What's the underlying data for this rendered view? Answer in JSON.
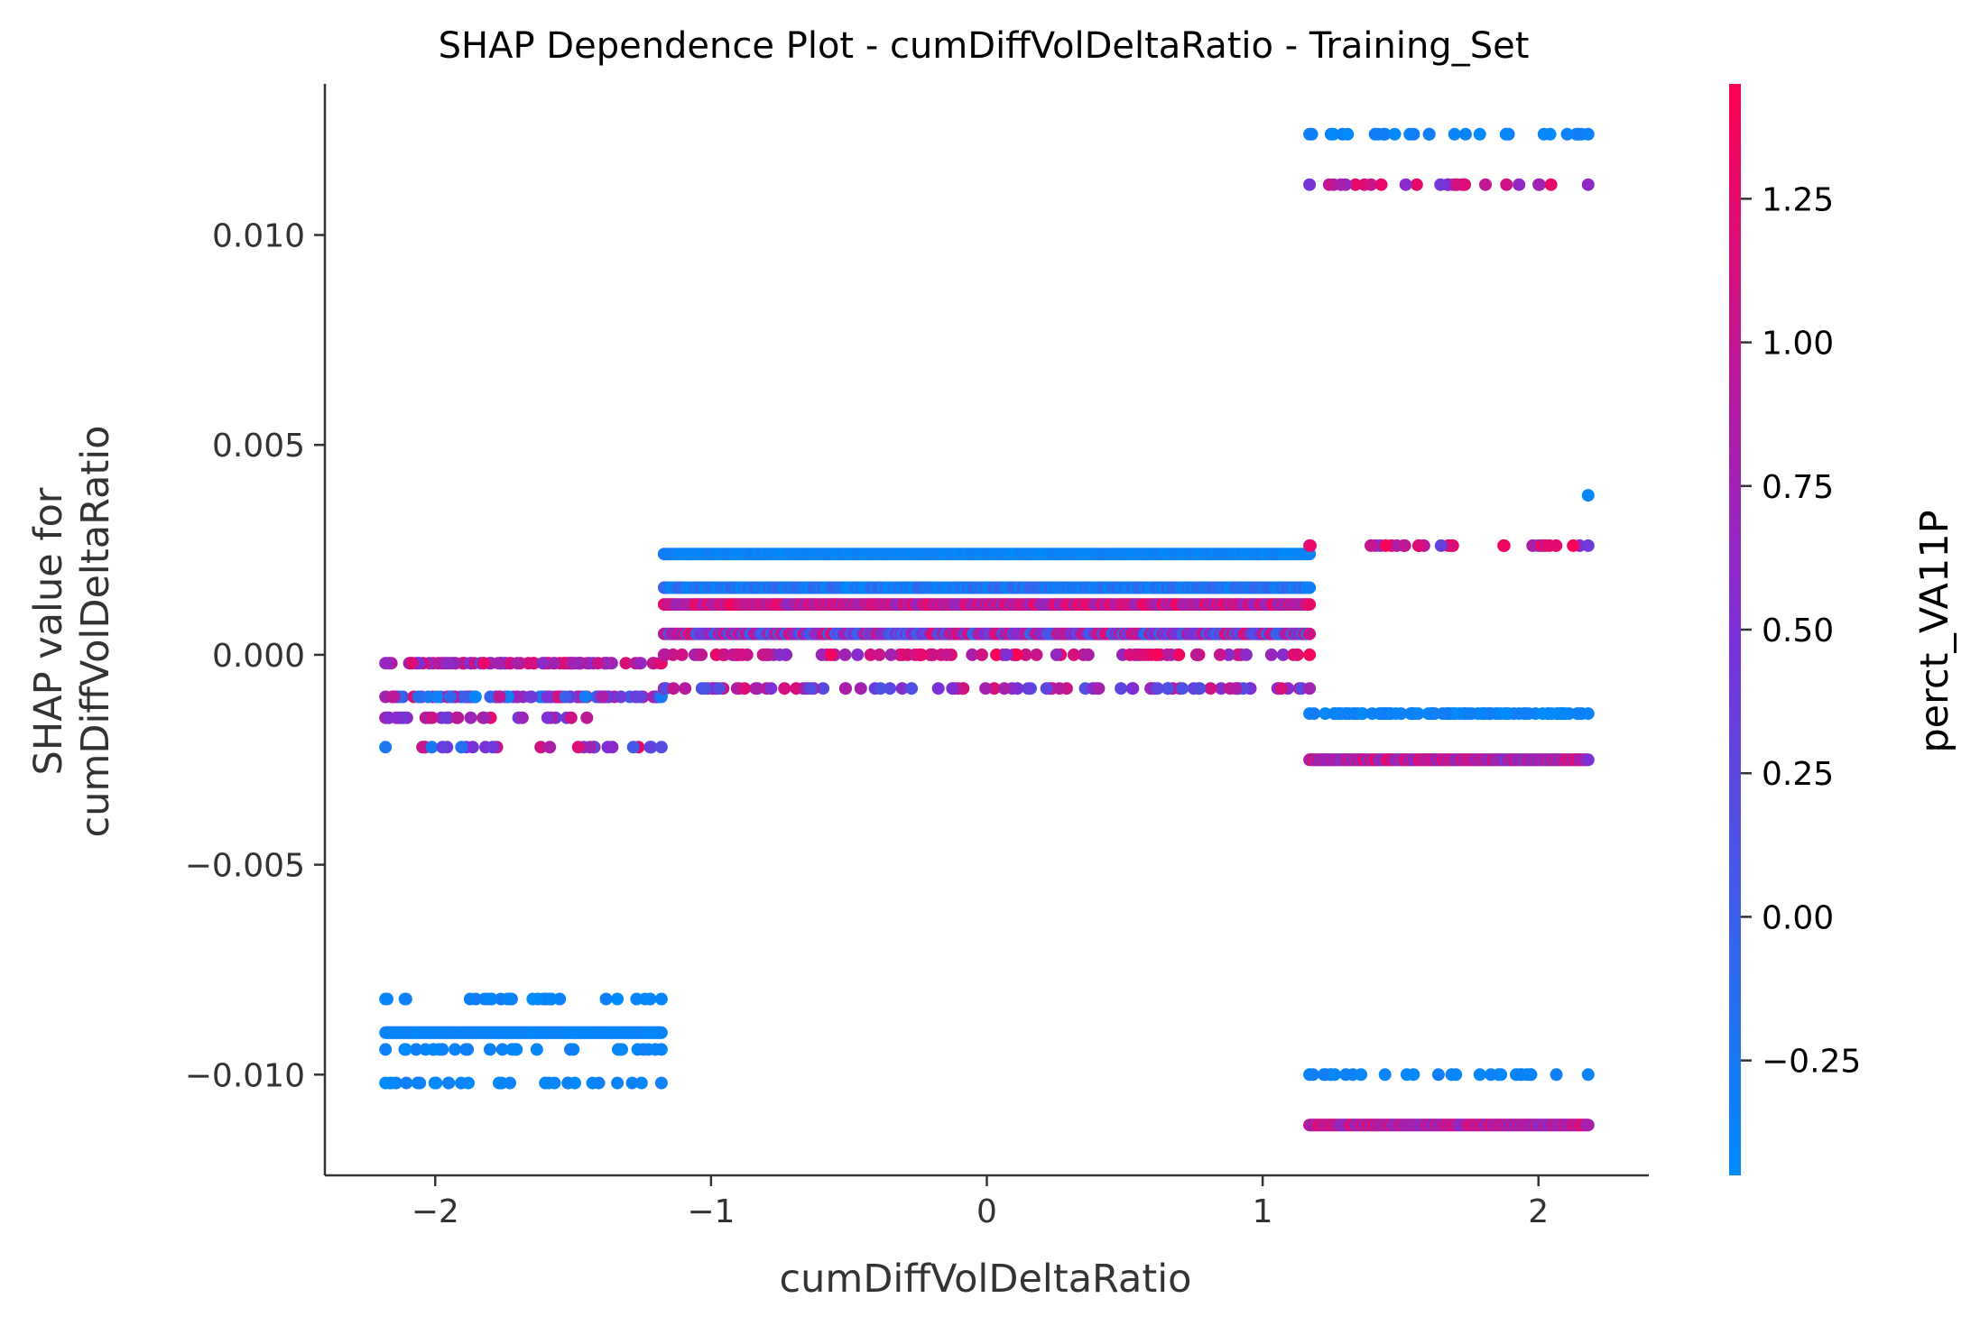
{
  "chart_data": {
    "type": "scatter",
    "title": "SHAP Dependence Plot - cumDiffVolDeltaRatio - Training_Set",
    "xlabel": "cumDiffVolDeltaRatio",
    "ylabel_lines": [
      "SHAP value for",
      "cumDiffVolDeltaRatio"
    ],
    "xlim": [
      -2.4,
      2.4
    ],
    "ylim": [
      -0.0124,
      0.0136
    ],
    "x_ticks": [
      {
        "value": -2,
        "label": "−2"
      },
      {
        "value": -1,
        "label": "−1"
      },
      {
        "value": 0,
        "label": "0"
      },
      {
        "value": 1,
        "label": "1"
      },
      {
        "value": 2,
        "label": "2"
      }
    ],
    "y_ticks": [
      {
        "value": 0.01,
        "label": "0.010"
      },
      {
        "value": 0.005,
        "label": "0.005"
      },
      {
        "value": 0.0,
        "label": "0.000"
      },
      {
        "value": -0.005,
        "label": "−0.005"
      },
      {
        "value": -0.01,
        "label": "−0.010"
      }
    ],
    "grid": false,
    "colorbar": {
      "label": "perct_VA11P",
      "range": [
        -0.45,
        1.45
      ],
      "colors": [
        "#008bfb",
        "#ff0052"
      ],
      "ticks": [
        {
          "value": 1.25,
          "label": "1.25"
        },
        {
          "value": 1.0,
          "label": "1.00"
        },
        {
          "value": 0.75,
          "label": "0.75"
        },
        {
          "value": 0.5,
          "label": "0.50"
        },
        {
          "value": 0.25,
          "label": "0.25"
        },
        {
          "value": 0.0,
          "label": "0.00"
        },
        {
          "value": -0.25,
          "label": "−0.25"
        }
      ]
    },
    "point_bands": [
      {
        "x_range": [
          -2.18,
          -1.18
        ],
        "y": -0.0002,
        "color_range": [
          0.4,
          1.3
        ],
        "density": "medium"
      },
      {
        "x_range": [
          -2.18,
          -1.18
        ],
        "y": -0.001,
        "color_range": [
          -0.4,
          1.2
        ],
        "density": "medium"
      },
      {
        "x_range": [
          -2.18,
          -1.45
        ],
        "y": -0.0015,
        "color_range": [
          0.3,
          1.3
        ],
        "density": "sparse"
      },
      {
        "x_range": [
          -2.18,
          -1.18
        ],
        "y": -0.0022,
        "color_range": [
          -0.3,
          1.3
        ],
        "density": "sparse"
      },
      {
        "x_range": [
          -2.18,
          -1.18
        ],
        "y": -0.0082,
        "color_range": [
          -0.45,
          -0.3
        ],
        "density": "sparse"
      },
      {
        "x_range": [
          -2.18,
          -1.18
        ],
        "y": -0.009,
        "color_range": [
          -0.45,
          -0.3
        ],
        "density": "dense"
      },
      {
        "x_range": [
          -2.18,
          -1.18
        ],
        "y": -0.0094,
        "color_range": [
          -0.45,
          -0.3
        ],
        "density": "sparse"
      },
      {
        "x_range": [
          -2.18,
          -1.18
        ],
        "y": -0.0102,
        "color_range": [
          -0.45,
          -0.3
        ],
        "density": "sparse"
      },
      {
        "x_range": [
          -1.17,
          1.17
        ],
        "y": 0.0024,
        "color_range": [
          -0.45,
          -0.3
        ],
        "density": "dense"
      },
      {
        "x_range": [
          -1.17,
          1.17
        ],
        "y": 0.0016,
        "color_range": [
          -0.45,
          0.0
        ],
        "density": "dense"
      },
      {
        "x_range": [
          -1.17,
          1.17
        ],
        "y": 0.0012,
        "color_range": [
          0.6,
          1.4
        ],
        "density": "dense"
      },
      {
        "x_range": [
          -1.17,
          1.17
        ],
        "y": 0.0005,
        "color_range": [
          -0.2,
          1.3
        ],
        "density": "dense"
      },
      {
        "x_range": [
          -1.17,
          1.17
        ],
        "y": 0.0,
        "color_range": [
          0.5,
          1.4
        ],
        "density": "medium"
      },
      {
        "x_range": [
          -1.17,
          1.17
        ],
        "y": -0.0008,
        "color_range": [
          0.1,
          1.2
        ],
        "density": "medium"
      },
      {
        "x_range": [
          1.17,
          2.18
        ],
        "y": 0.0124,
        "color_range": [
          -0.45,
          -0.3
        ],
        "density": "sparse"
      },
      {
        "x_range": [
          1.17,
          2.18
        ],
        "y": 0.0112,
        "color_range": [
          0.3,
          1.3
        ],
        "density": "sparse"
      },
      {
        "x_range": [
          2.16,
          2.18
        ],
        "y": 0.0038,
        "color_range": [
          -0.45,
          -0.3
        ],
        "density": "single"
      },
      {
        "x_range": [
          1.17,
          2.18
        ],
        "y": 0.0026,
        "color_range": [
          0.3,
          1.4
        ],
        "density": "sparse"
      },
      {
        "x_range": [
          1.17,
          2.18
        ],
        "y": -0.0014,
        "color_range": [
          -0.45,
          -0.3
        ],
        "density": "medium"
      },
      {
        "x_range": [
          1.17,
          2.18
        ],
        "y": -0.0025,
        "color_range": [
          0.3,
          1.4
        ],
        "density": "dense"
      },
      {
        "x_range": [
          1.17,
          2.18
        ],
        "y": -0.01,
        "color_range": [
          -0.45,
          -0.3
        ],
        "density": "sparse"
      },
      {
        "x_range": [
          1.17,
          2.18
        ],
        "y": -0.0112,
        "color_range": [
          0.4,
          1.4
        ],
        "density": "dense"
      }
    ]
  }
}
